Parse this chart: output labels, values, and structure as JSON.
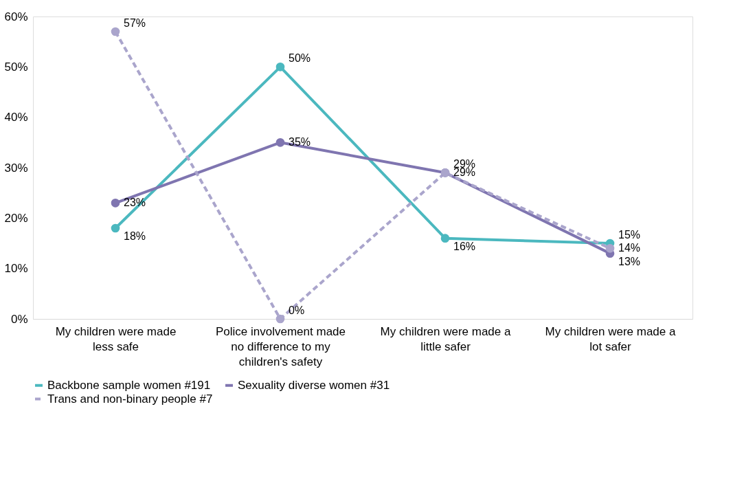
{
  "chart_data": {
    "type": "line",
    "categories": [
      "My children were made less safe",
      "Police involvement made no difference to my children's safety",
      "My children were made a little safer",
      "My children were made a lot safer"
    ],
    "series": [
      {
        "name": "Backbone sample women #191",
        "color": "#4bb8bf",
        "values": [
          18,
          50,
          16,
          15
        ],
        "value_labels": [
          "18%",
          "50%",
          "16%",
          "15%"
        ],
        "line_style": "solid"
      },
      {
        "name": "Sexuality diverse women #31",
        "color": "#7f75b0",
        "values": [
          23,
          35,
          29,
          13
        ],
        "value_labels": [
          "23%",
          "35%",
          "29%",
          "13%"
        ],
        "line_style": "solid"
      },
      {
        "name": "Trans and non-binary people #7",
        "color": "#aaa5cc",
        "values": [
          57,
          0,
          29,
          14
        ],
        "value_labels": [
          "57%",
          "0%",
          "29%",
          "14%"
        ],
        "line_style": "dashed"
      }
    ],
    "ylim": [
      0,
      60
    ],
    "yticks": [
      {
        "value": 0,
        "label": "0%"
      },
      {
        "value": 10,
        "label": "10%"
      },
      {
        "value": 20,
        "label": "20%"
      },
      {
        "value": 30,
        "label": "30%"
      },
      {
        "value": 40,
        "label": "40%"
      },
      {
        "value": 50,
        "label": "50%"
      },
      {
        "value": 60,
        "label": "60%"
      }
    ],
    "marker": "circle",
    "grid": false,
    "legend": "bottom"
  }
}
